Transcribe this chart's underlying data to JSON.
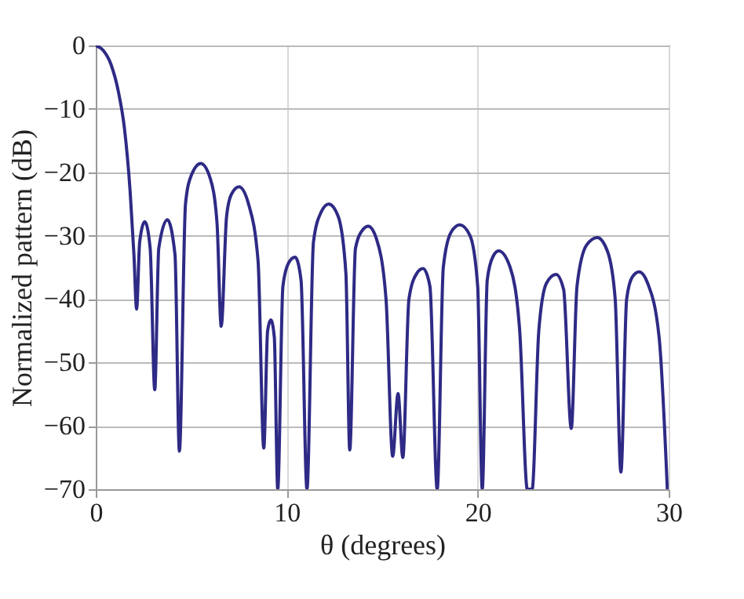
{
  "chart_data": {
    "type": "line",
    "xlabel": "θ (degrees)",
    "ylabel": "Normalized pattern (dB)",
    "xlim": [
      0,
      30
    ],
    "ylim": [
      -70,
      0
    ],
    "xticks": [
      0,
      10,
      20,
      30
    ],
    "yticks": [
      -70,
      -60,
      -50,
      -40,
      -30,
      -20,
      -10,
      0
    ],
    "grid": true,
    "line_style": "solid",
    "marker": "none",
    "series": [
      {
        "color": "#2e2a85",
        "x": [
          0,
          0.4,
          0.8,
          1.2,
          1.5,
          1.8,
          2.0,
          2.14,
          2.3,
          2.57,
          2.85,
          3.09,
          3.3,
          3.75,
          4.15,
          4.38,
          4.7,
          5.0,
          5.5,
          6.0,
          6.35,
          6.57,
          6.85,
          7.1,
          7.5,
          8.0,
          8.5,
          8.8,
          9.0,
          9.17,
          9.35,
          9.53,
          9.8,
          10.1,
          10.44,
          10.75,
          11.06,
          11.4,
          11.8,
          12.2,
          12.7,
          13.1,
          13.3,
          13.6,
          14.0,
          14.27,
          14.7,
          15.2,
          15.55,
          15.83,
          16.08,
          16.4,
          16.8,
          17.14,
          17.5,
          17.88,
          18.2,
          18.6,
          19.06,
          19.6,
          20.0,
          20.24,
          20.5,
          20.8,
          21.1,
          21.7,
          22.2,
          22.6,
          22.85,
          23.2,
          23.6,
          24.1,
          24.5,
          24.9,
          25.2,
          25.7,
          26.26,
          26.8,
          27.2,
          27.5,
          27.8,
          28.1,
          28.45,
          28.9,
          29.5,
          29.93
        ],
        "values": [
          0,
          -0.8,
          -3,
          -7.5,
          -13,
          -23,
          -33,
          -41.6,
          -31,
          -27.8,
          -32,
          -54.3,
          -32,
          -27.5,
          -33,
          -64,
          -25,
          -20.5,
          -18.6,
          -21,
          -28,
          -44.3,
          -27,
          -23.5,
          -22.3,
          -25,
          -34,
          -63.5,
          -45,
          -43.3,
          -46,
          -70,
          -38,
          -34.3,
          -33.4,
          -37,
          -70,
          -31,
          -26.3,
          -25,
          -27,
          -36,
          -63.8,
          -32,
          -29,
          -28.5,
          -30.5,
          -40,
          -64.8,
          -54.9,
          -65,
          -40,
          -36,
          -35.2,
          -38,
          -70,
          -35,
          -29.5,
          -28.3,
          -30,
          -38,
          -70,
          -37,
          -33.3,
          -32.4,
          -35,
          -45,
          -70,
          -70,
          -45,
          -37.5,
          -36.1,
          -38.5,
          -60.4,
          -38,
          -31.5,
          -30.3,
          -32.5,
          -40,
          -67.3,
          -40,
          -36.5,
          -35.7,
          -37.5,
          -46,
          -70
        ]
      }
    ]
  }
}
